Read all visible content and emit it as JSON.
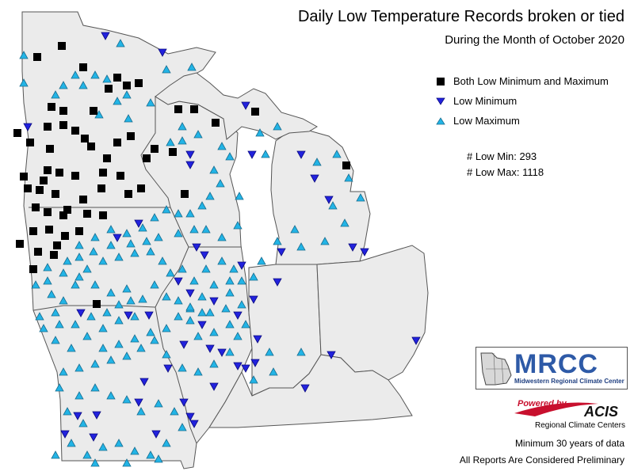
{
  "title": "Daily Low Temperature Records broken or tied",
  "subtitle": "During the Month of October 2020",
  "legend": [
    {
      "label": "Both Low Minimum and Maximum",
      "symbol": "square-icon",
      "color": "#000000"
    },
    {
      "label": "Low Minimum",
      "symbol": "down-triangle-icon",
      "color": "#2222dd"
    },
    {
      "label": "Low Maximum",
      "symbol": "up-triangle-icon",
      "color": "#22b4e6"
    }
  ],
  "stats": {
    "low_min": "# Low Min: 293",
    "low_max": "# Low Max: 1118"
  },
  "logos": {
    "mrcc": "MRCC",
    "mrcc_full": "Midwestern Regional Climate Center",
    "powered_by": "Powered by",
    "acis": "ACIS",
    "acis_full": "Regional Climate Centers"
  },
  "footer": {
    "line1": "Minimum 30 years of data",
    "line2": "All Reports Are Considered Preliminary"
  },
  "colors": {
    "land": "#ebebeb",
    "border": "#555555",
    "both": "#000000",
    "low_min": "#2222dd",
    "low_max": "#22b4e6"
  }
}
